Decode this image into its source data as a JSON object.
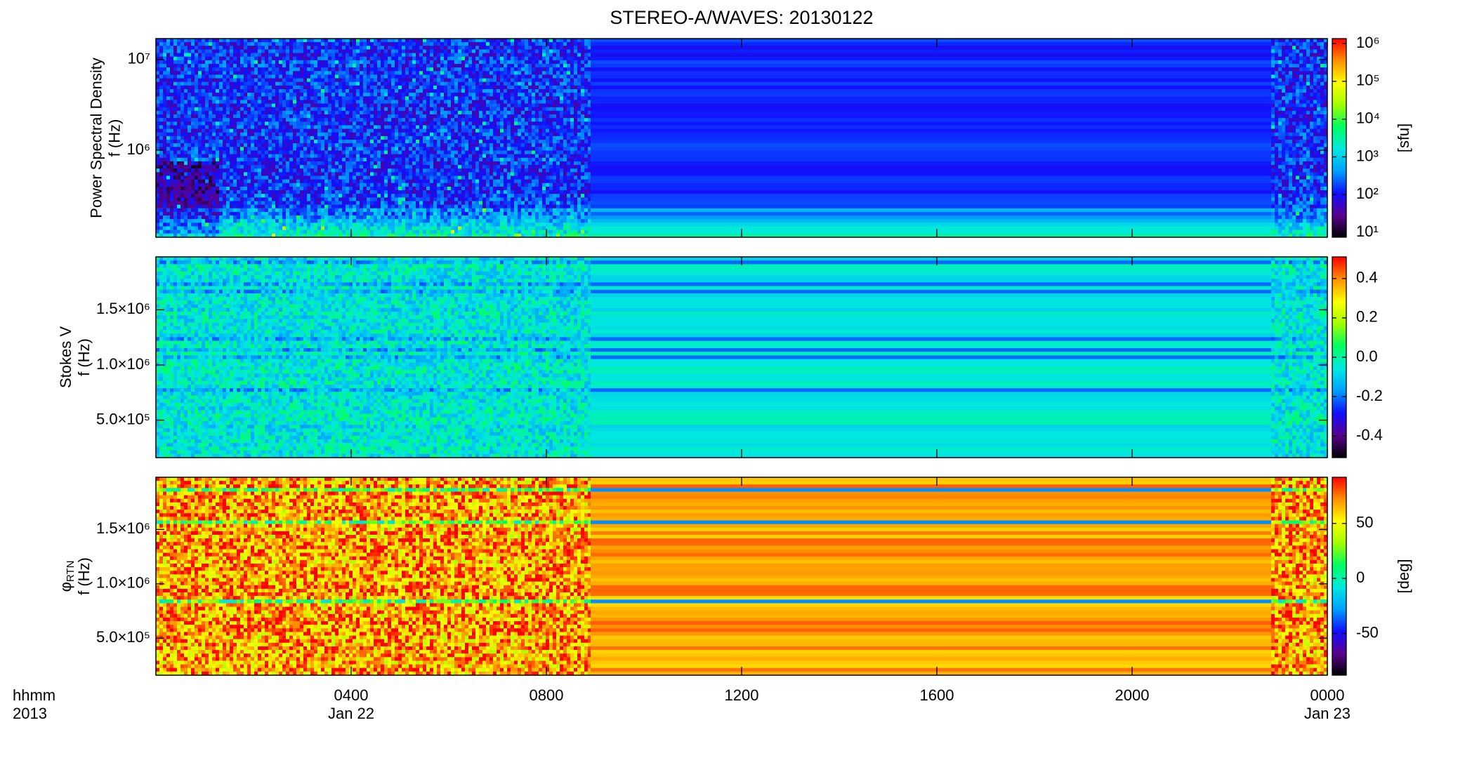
{
  "chart_data": {
    "type": "spectrogram",
    "title": "STEREO-A/WAVES: 20130122",
    "xlabel": "hhmm",
    "year": "2013",
    "xlim": [
      0,
      24
    ],
    "xticks": [
      {
        "value": 4,
        "label": "0400"
      },
      {
        "value": 8,
        "label": "0800"
      },
      {
        "value": 12,
        "label": "1200"
      },
      {
        "value": 16,
        "label": "1600"
      },
      {
        "value": 20,
        "label": "2000"
      },
      {
        "value": 24,
        "label": "0000"
      }
    ],
    "date_labels": [
      {
        "value": 4,
        "label": "Jan 22"
      },
      {
        "value": 24,
        "label": "Jan 23"
      }
    ],
    "colorscale": [
      "#000000",
      "#5a0090",
      "#1010ff",
      "#00a0ff",
      "#00e8e0",
      "#00ff60",
      "#a0ff00",
      "#ffff00",
      "#ff9000",
      "#ff0000"
    ],
    "panels": [
      {
        "quantity": "Power Spectral Density",
        "ylabel": "f (Hz)",
        "yscale": "log",
        "ylim": [
          110000,
          17000000
        ],
        "yticks": [
          {
            "value": 1000000,
            "label": "10⁶"
          },
          {
            "value": 10000000,
            "label": "10⁷"
          }
        ],
        "cscale": "log",
        "clim": [
          7.5,
          1350000
        ],
        "cticks": [
          {
            "value": 10,
            "label": "10¹"
          },
          {
            "value": 100,
            "label": "10²"
          },
          {
            "value": 1000,
            "label": "10³"
          },
          {
            "value": 10000,
            "label": "10⁴"
          },
          {
            "value": 100000,
            "label": "10⁵"
          },
          {
            "value": 1000000,
            "label": "10⁶"
          }
        ],
        "clabel": "[sfu]"
      },
      {
        "quantity": "Stokes V",
        "ylabel": "f (Hz)",
        "yscale": "linear",
        "ylim": [
          160000,
          1980000
        ],
        "yticks": [
          {
            "value": 500000,
            "label": "5.0×10⁵"
          },
          {
            "value": 1000000,
            "label": "1.0×10⁶"
          },
          {
            "value": 1500000,
            "label": "1.5×10⁶"
          }
        ],
        "cscale": "linear",
        "clim": [
          -0.51,
          0.51
        ],
        "cticks": [
          0.4,
          0.2,
          {
            "value": 0,
            "label": "0.0"
          },
          -0.2,
          -0.4
        ]
      },
      {
        "quantity": "φ",
        "quantity_sub": "RTN",
        "ylabel": "f (Hz)",
        "yscale": "linear",
        "ylim": [
          160000,
          1980000
        ],
        "yticks": [
          {
            "value": 500000,
            "label": "5.0×10⁵"
          },
          {
            "value": 1000000,
            "label": "1.0×10⁶"
          },
          {
            "value": 1500000,
            "label": "1.5×10⁶"
          }
        ],
        "cscale": "linear",
        "clim": [
          -88,
          92
        ],
        "cticks": [
          50,
          0,
          -50
        ],
        "clabel": "[deg]"
      }
    ]
  }
}
